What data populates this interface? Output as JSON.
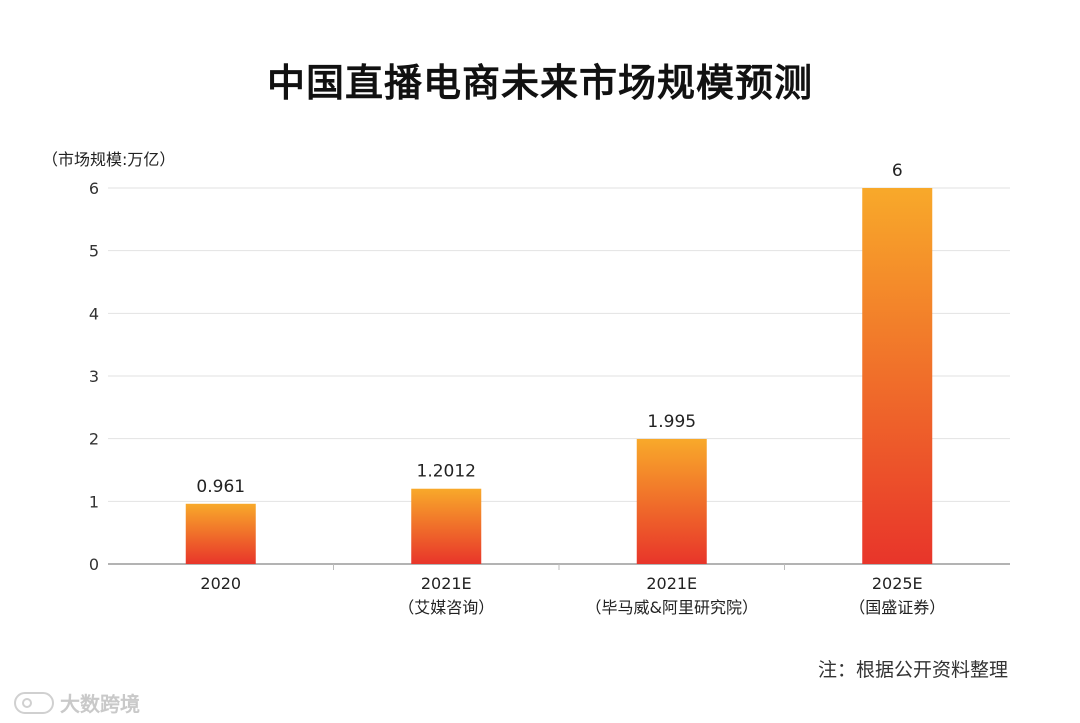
{
  "chart_data": {
    "type": "bar",
    "title": "中国直播电商未来市场规模预测",
    "ylabel": "（市场规模:万亿）",
    "ylim": [
      0,
      6
    ],
    "yticks": [
      "0",
      "1",
      "2",
      "3",
      "4",
      "5",
      "6"
    ],
    "grid": true,
    "categories": [
      {
        "year": "2020",
        "source": ""
      },
      {
        "year": "2021E",
        "source": "（艾媒咨询）"
      },
      {
        "year": "2021E",
        "source": "（毕马威&阿里研究院）"
      },
      {
        "year": "2025E",
        "source": "（国盛证券）"
      }
    ],
    "values": [
      0.961,
      1.2012,
      1.995,
      6
    ],
    "value_labels": [
      "0.961",
      "1.2012",
      "1.995",
      "6"
    ],
    "bar_gradient": {
      "top": "#f8a92a",
      "bottom": "#e8352a"
    }
  },
  "footer": {
    "note": "注：根据公开资料整理",
    "watermark": "大数跨境"
  }
}
